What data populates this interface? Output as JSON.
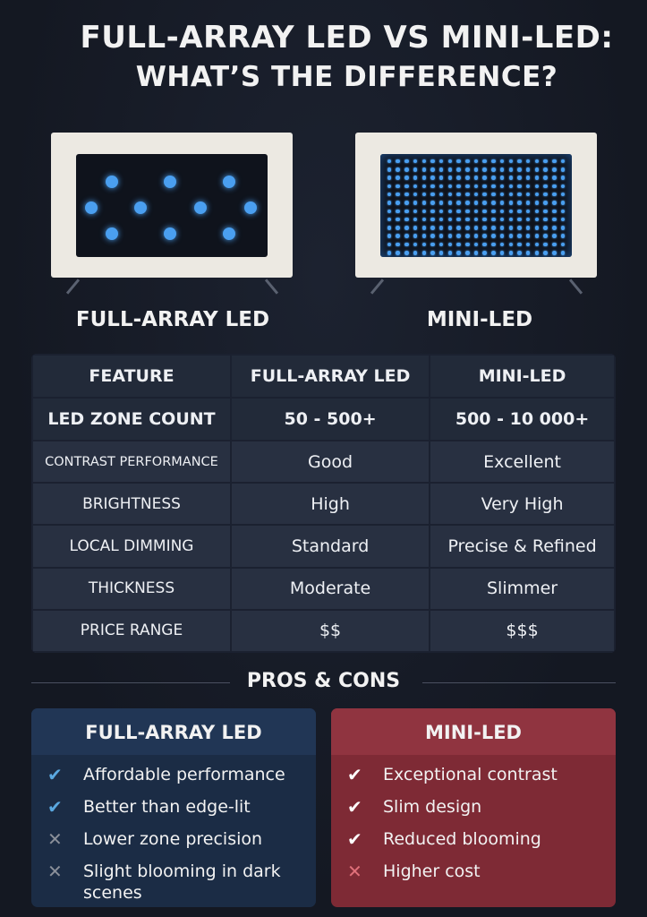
{
  "title": {
    "line1": "FULL-ARRAY LED VS MINI-LED:",
    "line2": "WHAT’S THE DIFFERENCE?"
  },
  "tvs": [
    {
      "label": "FULL-ARRAY LED"
    },
    {
      "label": "MINI-LED"
    }
  ],
  "table": {
    "headers": [
      "FEATURE",
      "FULL-ARRAY LED",
      "MINI-LED"
    ],
    "rows": [
      [
        "LED ZONE COUNT",
        "50 - 500+",
        "500 - 10 000+"
      ],
      [
        "CONTRAST PERFORMANCE",
        "Good",
        "Excellent"
      ],
      [
        "BRIGHTNESS",
        "High",
        "Very High"
      ],
      [
        "LOCAL DIMMING",
        "Standard",
        "Precise & Refined"
      ],
      [
        "THICKNESS",
        "Moderate",
        "Slimmer"
      ],
      [
        "PRICE RANGE",
        "$$",
        "$$$"
      ]
    ]
  },
  "pros_cons": {
    "heading": "PROS & CONS",
    "cards": [
      {
        "title": "FULL-ARRAY LED",
        "color": "#1b2c45",
        "items": [
          {
            "icon": "check-icon",
            "type": "pro",
            "text": "Affordable performance"
          },
          {
            "icon": "check-icon",
            "type": "pro",
            "text": "Better than edge-lit"
          },
          {
            "icon": "cross-icon",
            "type": "con",
            "text": "Lower zone precision"
          },
          {
            "icon": "cross-icon",
            "type": "con",
            "text": "Slight blooming in dark scenes"
          }
        ]
      },
      {
        "title": "MINI-LED",
        "color": "#7e2a35",
        "items": [
          {
            "icon": "check-icon",
            "type": "pro",
            "text": "Exceptional contrast"
          },
          {
            "icon": "check-icon",
            "type": "pro",
            "text": "Slim design"
          },
          {
            "icon": "check-icon",
            "type": "pro",
            "text": "Reduced blooming"
          },
          {
            "icon": "cross-icon",
            "type": "con",
            "text": "Higher cost"
          }
        ]
      }
    ]
  },
  "colors": {
    "led_blue": "#4a9ff0",
    "check_blue": "#5aa8e0",
    "cross_gray": "#8a8f99",
    "check_white": "#ffffff",
    "cross_pink": "#e0707a"
  }
}
